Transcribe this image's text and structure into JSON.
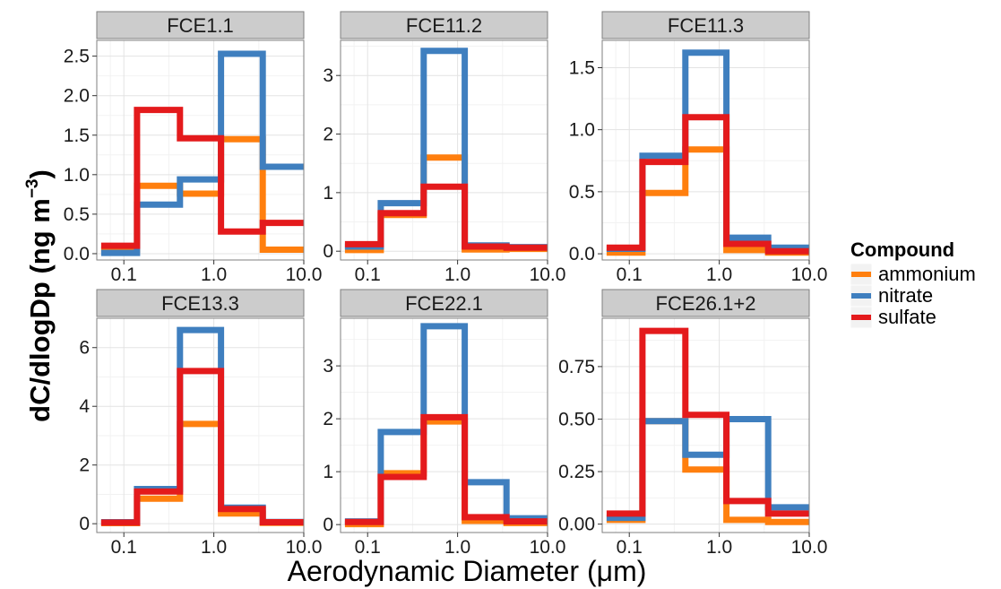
{
  "chart_data": {
    "type": "line",
    "step": true,
    "xlabel": "Aerodynamic Diameter (μm)",
    "ylabel": {
      "main": "dC/dlogDp (ng m",
      "sup": "−3",
      "close": ")"
    },
    "x_scale": "log",
    "x_ticks": [
      0.1,
      1.0,
      10.0
    ],
    "x_tick_labels": [
      "0.1",
      "1.0",
      "10.0"
    ],
    "xlim": [
      0.05,
      10
    ],
    "bin_edges": [
      0.056,
      0.14,
      0.42,
      1.2,
      3.5,
      10
    ],
    "grid": true,
    "legend": {
      "title": "Compound",
      "position": "right",
      "entries": [
        {
          "name": "ammonium",
          "color": "#FF7F0E"
        },
        {
          "name": "nitrate",
          "color": "#3F7FBF"
        },
        {
          "name": "sulfate",
          "color": "#E41A1C"
        }
      ]
    },
    "panels": [
      {
        "title": "FCE1.1",
        "ylim": [
          -0.08,
          2.7
        ],
        "y_ticks": [
          0,
          0.5,
          1,
          1.5,
          2,
          2.5
        ],
        "y_tick_labels": [
          "0.0",
          "0.5",
          "1.0",
          "1.5",
          "2.0",
          "2.5"
        ],
        "series": [
          {
            "name": "ammonium",
            "values": [
              0.05,
              0.86,
              0.76,
              1.45,
              0.05
            ]
          },
          {
            "name": "nitrate",
            "values": [
              0.01,
              0.62,
              0.94,
              2.53,
              1.1
            ]
          },
          {
            "name": "sulfate",
            "values": [
              0.1,
              1.82,
              1.46,
              0.28,
              0.39
            ]
          }
        ]
      },
      {
        "title": "FCE11.2",
        "ylim": [
          -0.15,
          3.6
        ],
        "y_ticks": [
          0,
          1,
          2,
          3
        ],
        "y_tick_labels": [
          "0",
          "1",
          "2",
          "3"
        ],
        "series": [
          {
            "name": "ammonium",
            "values": [
              0.02,
              0.62,
              1.6,
              0.03,
              0.04
            ]
          },
          {
            "name": "nitrate",
            "values": [
              0.08,
              0.82,
              3.42,
              0.1,
              0.07
            ]
          },
          {
            "name": "sulfate",
            "values": [
              0.12,
              0.65,
              1.1,
              0.08,
              0.06
            ]
          }
        ]
      },
      {
        "title": "FCE11.3",
        "ylim": [
          -0.05,
          1.72
        ],
        "y_ticks": [
          0,
          0.5,
          1,
          1.5
        ],
        "y_tick_labels": [
          "0.0",
          "0.5",
          "1.0",
          "1.5"
        ],
        "series": [
          {
            "name": "ammonium",
            "values": [
              0.01,
              0.49,
              0.84,
              0.03,
              0.01
            ]
          },
          {
            "name": "nitrate",
            "values": [
              0.04,
              0.79,
              1.62,
              0.13,
              0.05
            ]
          },
          {
            "name": "sulfate",
            "values": [
              0.05,
              0.74,
              1.1,
              0.08,
              0.02
            ]
          }
        ]
      },
      {
        "title": "FCE13.3",
        "ylim": [
          -0.3,
          7.0
        ],
        "y_ticks": [
          0,
          2,
          4,
          6
        ],
        "y_tick_labels": [
          "0",
          "2",
          "4",
          "6"
        ],
        "series": [
          {
            "name": "ammonium",
            "values": [
              0.02,
              0.85,
              3.4,
              0.35,
              0.03
            ]
          },
          {
            "name": "nitrate",
            "values": [
              0.05,
              1.18,
              6.6,
              0.55,
              0.06
            ]
          },
          {
            "name": "sulfate",
            "values": [
              0.04,
              1.1,
              5.2,
              0.5,
              0.05
            ]
          }
        ]
      },
      {
        "title": "FCE22.1",
        "ylim": [
          -0.15,
          3.9
        ],
        "y_ticks": [
          0,
          1,
          2,
          3
        ],
        "y_tick_labels": [
          "0",
          "1",
          "2",
          "3"
        ],
        "series": [
          {
            "name": "ammonium",
            "values": [
              0.01,
              0.97,
              1.95,
              0.07,
              0.03
            ]
          },
          {
            "name": "nitrate",
            "values": [
              0.06,
              1.75,
              3.75,
              0.8,
              0.12
            ]
          },
          {
            "name": "sulfate",
            "values": [
              0.05,
              0.9,
              2.03,
              0.14,
              0.06
            ]
          }
        ]
      },
      {
        "title": "FCE26.1+2",
        "ylim": [
          -0.04,
          0.98
        ],
        "y_ticks": [
          0,
          0.25,
          0.5,
          0.75
        ],
        "y_tick_labels": [
          "0.00",
          "0.25",
          "0.50",
          "0.75"
        ],
        "series": [
          {
            "name": "ammonium",
            "values": [
              0.02,
              0.49,
              0.26,
              0.02,
              0.01
            ]
          },
          {
            "name": "nitrate",
            "values": [
              0.03,
              0.49,
              0.33,
              0.5,
              0.08
            ]
          },
          {
            "name": "sulfate",
            "values": [
              0.05,
              0.92,
              0.52,
              0.11,
              0.05
            ]
          }
        ]
      }
    ]
  }
}
